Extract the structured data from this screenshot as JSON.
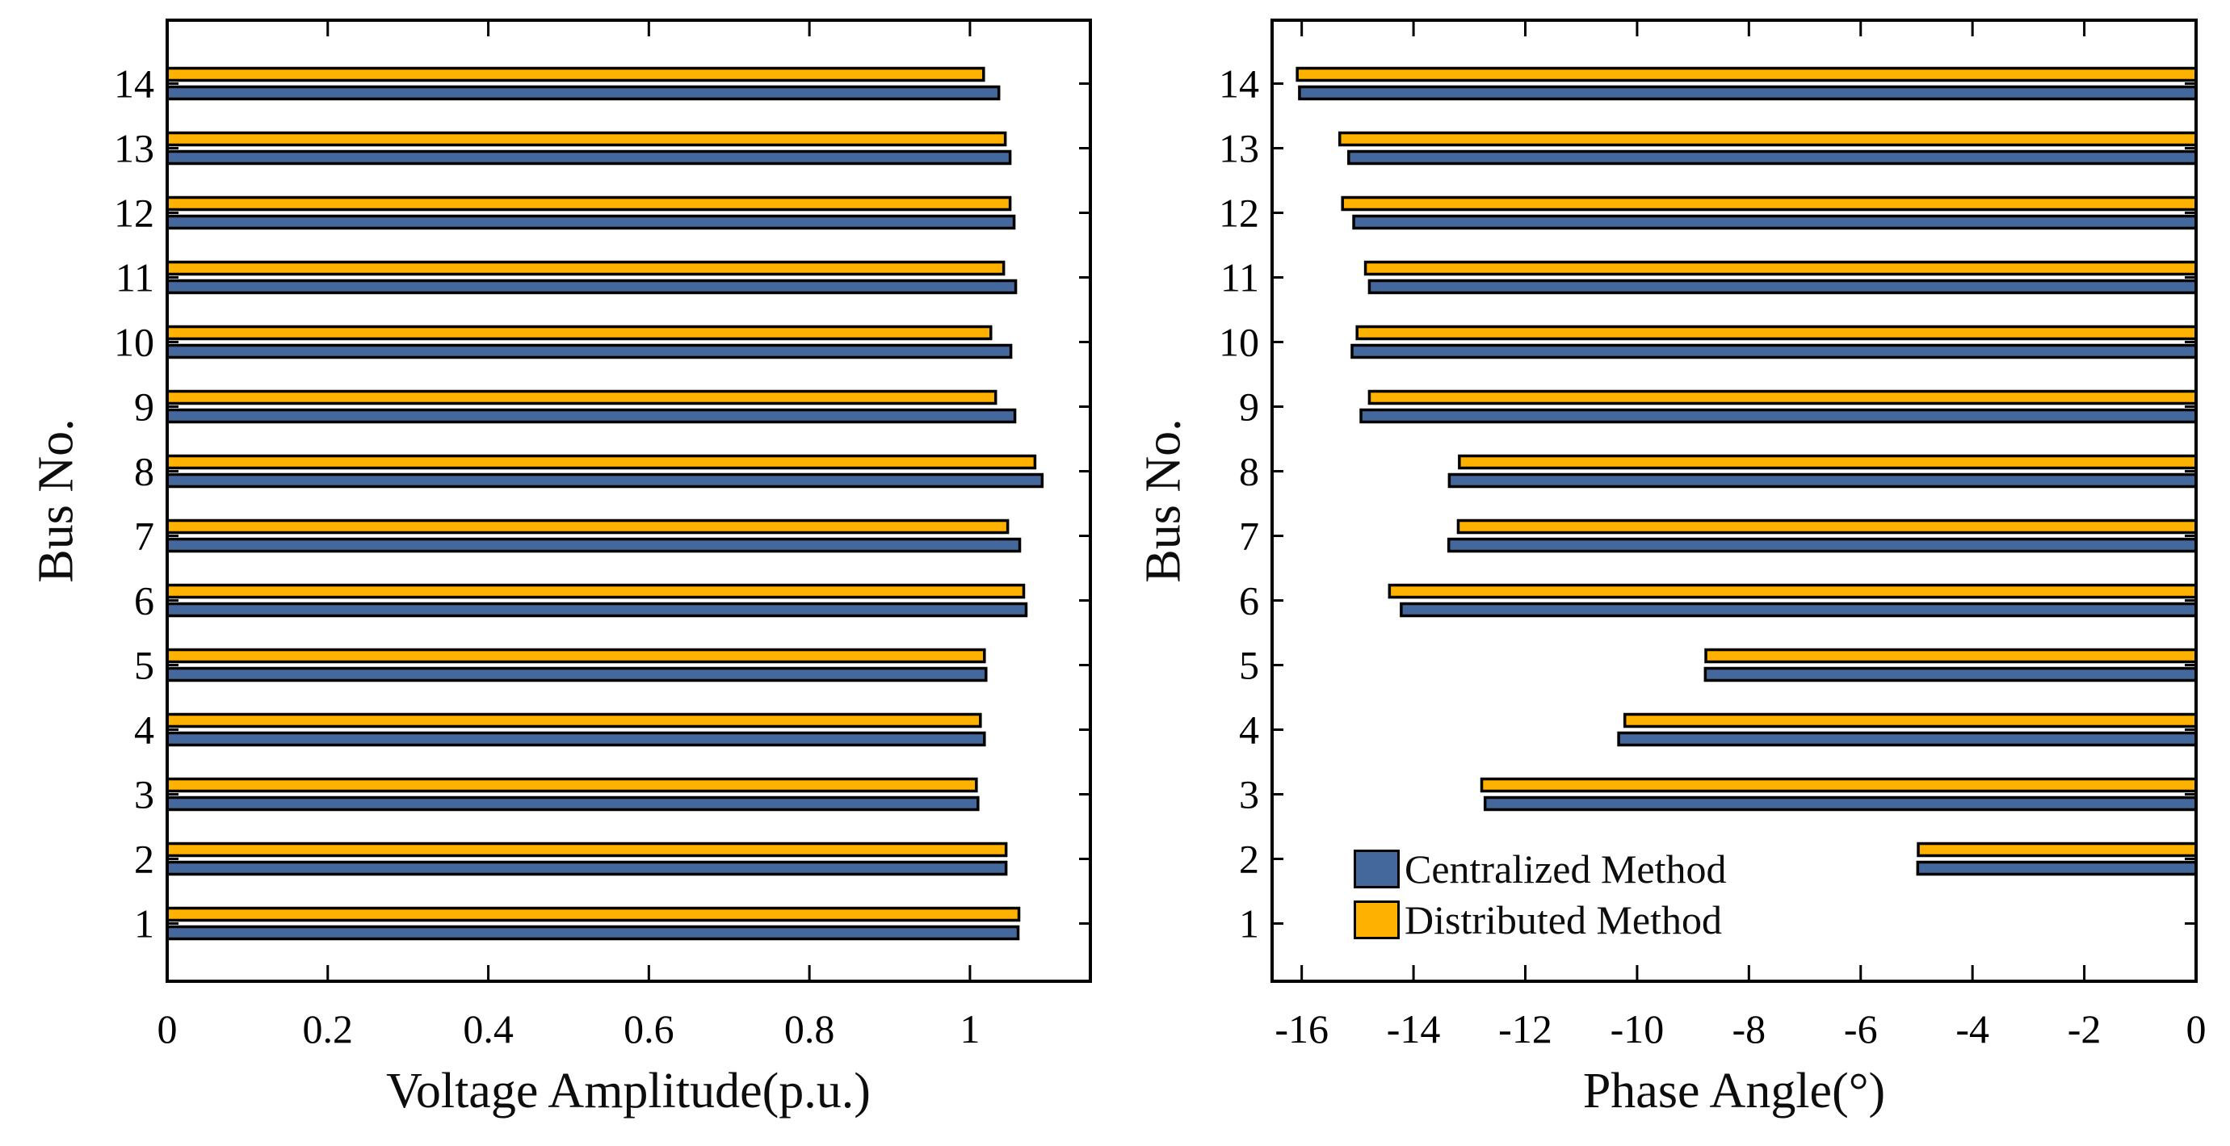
{
  "figure": {
    "background": "#ffffff",
    "axis_color": "#000000",
    "bar_edge_color": "#000000",
    "accent_blue": "#44679C",
    "accent_orange": "#FFB100"
  },
  "legend": {
    "items": [
      {
        "label": "Centralized Method",
        "color": "#44679C"
      },
      {
        "label": "Distributed Method",
        "color": "#FFB100"
      }
    ]
  },
  "chart_data": [
    {
      "id": "voltage_amplitude",
      "type": "bar",
      "orientation": "horizontal",
      "title": "",
      "xlabel": "Voltage Amplitude(p.u.)",
      "ylabel": "Bus No.",
      "categories": [
        1,
        2,
        3,
        4,
        5,
        6,
        7,
        8,
        9,
        10,
        11,
        12,
        13,
        14
      ],
      "series": [
        {
          "name": "Centralized Method",
          "color": "#44679C",
          "values": [
            1.06,
            1.045,
            1.01,
            1.018,
            1.02,
            1.07,
            1.062,
            1.09,
            1.056,
            1.051,
            1.057,
            1.055,
            1.05,
            1.036
          ]
        },
        {
          "name": "Distributed Method",
          "color": "#FFB100",
          "values": [
            1.061,
            1.045,
            1.008,
            1.013,
            1.018,
            1.067,
            1.047,
            1.081,
            1.032,
            1.026,
            1.042,
            1.05,
            1.044,
            1.017
          ]
        }
      ],
      "xlim": [
        0,
        1.15
      ],
      "xticks": [
        0,
        0.2,
        0.4,
        0.6,
        0.8,
        1
      ],
      "xtick_labels": [
        "0",
        "0.2",
        "0.4",
        "0.6",
        "0.8",
        "1"
      ],
      "ylim": [
        0.2,
        14.8
      ],
      "grid": false,
      "legend_position": "none"
    },
    {
      "id": "phase_angle",
      "type": "bar",
      "orientation": "horizontal",
      "title": "",
      "xlabel": "Phase Angle(°)",
      "ylabel": "Bus No.",
      "categories": [
        1,
        2,
        3,
        4,
        5,
        6,
        7,
        8,
        9,
        10,
        11,
        12,
        13,
        14
      ],
      "series": [
        {
          "name": "Centralized Method",
          "color": "#44679C",
          "values": [
            0,
            -4.98,
            -12.72,
            -10.33,
            -8.78,
            -14.22,
            -13.37,
            -13.36,
            -14.94,
            -15.1,
            -14.79,
            -15.07,
            -15.16,
            -16.04
          ]
        },
        {
          "name": "Distributed Method",
          "color": "#FFB100",
          "values": [
            0,
            -4.97,
            -12.78,
            -10.22,
            -8.77,
            -14.43,
            -13.2,
            -13.18,
            -14.79,
            -15.01,
            -14.86,
            -15.27,
            -15.32,
            -16.08
          ]
        }
      ],
      "xlim": [
        -16.53,
        0
      ],
      "xticks": [
        -16,
        -14,
        -12,
        -10,
        -8,
        -6,
        -4,
        -2,
        0
      ],
      "xtick_labels": [
        "-16",
        "-14",
        "-12",
        "-10",
        "-8",
        "-6",
        "-4",
        "-2",
        "0"
      ],
      "ylim": [
        0.2,
        14.8
      ],
      "grid": false,
      "legend_position": "lower-left-inside"
    }
  ]
}
